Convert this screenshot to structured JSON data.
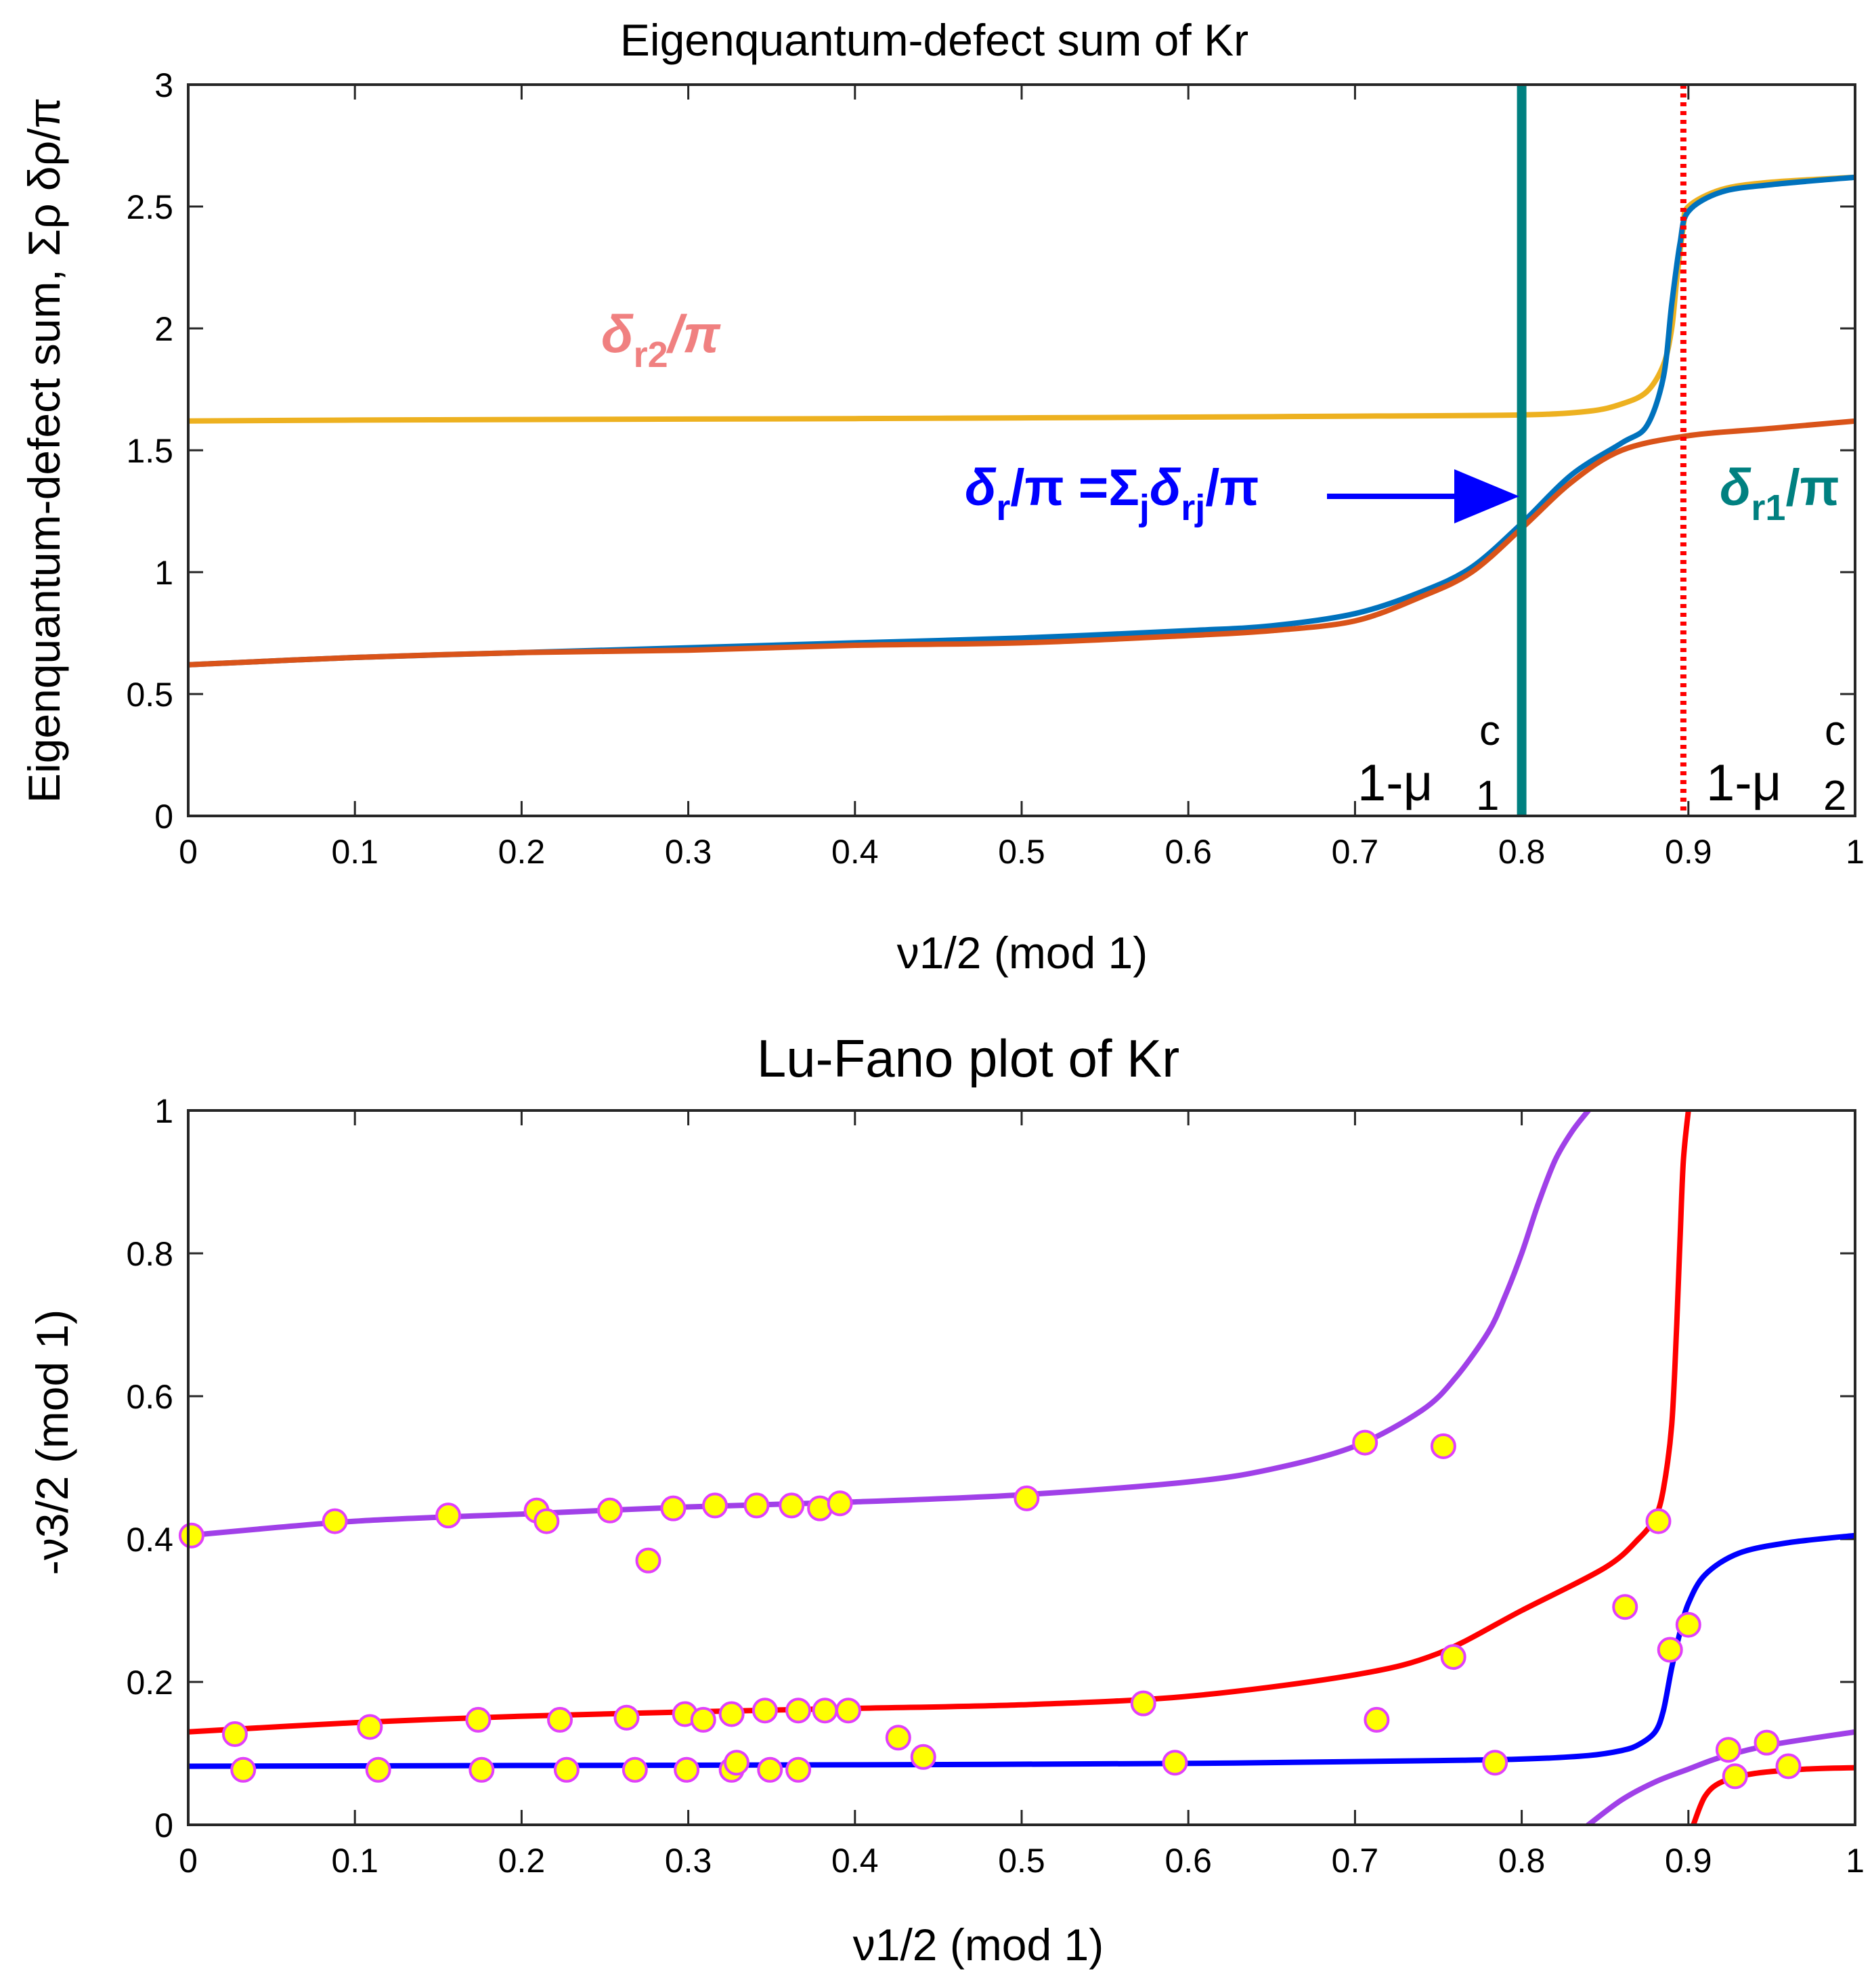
{
  "chart_data": [
    {
      "type": "line",
      "title": "Eigenquantum-defect sum of Kr",
      "xlabel": "ν1/2 (mod 1)",
      "ylabel": "Eigenquantum-defect sum, Σρ δρ/π",
      "xlim": [
        0,
        1
      ],
      "ylim": [
        0,
        3
      ],
      "xticks": [
        "0",
        "0.1",
        "0.2",
        "0.3",
        "0.4",
        "0.5",
        "0.6",
        "0.7",
        "0.8",
        "0.9",
        "1"
      ],
      "yticks": [
        "0",
        "0.5",
        "1",
        "1.5",
        "2",
        "2.5",
        "3"
      ],
      "series": [
        {
          "name": "δr2/π",
          "color": "#EDB120",
          "x": [
            0,
            0.1,
            0.2,
            0.3,
            0.4,
            0.5,
            0.6,
            0.7,
            0.8,
            0.84,
            0.86,
            0.875,
            0.885,
            0.89,
            0.893,
            0.897,
            0.9,
            0.92,
            0.95,
            1
          ],
          "y": [
            1.62,
            1.624,
            1.626,
            1.628,
            1.63,
            1.633,
            1.636,
            1.64,
            1.645,
            1.66,
            1.69,
            1.74,
            1.85,
            2.0,
            2.2,
            2.42,
            2.5,
            2.57,
            2.6,
            2.62
          ]
        },
        {
          "name": "δr/π = Σj δrj/π",
          "color": "#0072BD",
          "x": [
            0,
            0.1,
            0.2,
            0.3,
            0.4,
            0.5,
            0.6,
            0.65,
            0.7,
            0.74,
            0.77,
            0.8,
            0.83,
            0.86,
            0.875,
            0.885,
            0.89,
            0.895,
            0.9,
            0.92,
            0.95,
            1
          ],
          "y": [
            0.62,
            0.65,
            0.67,
            0.69,
            0.71,
            0.73,
            0.76,
            0.78,
            0.83,
            0.92,
            1.02,
            1.2,
            1.4,
            1.53,
            1.6,
            1.8,
            2.1,
            2.35,
            2.48,
            2.56,
            2.59,
            2.62
          ]
        },
        {
          "name": "δr1/π",
          "color": "#D95319",
          "x": [
            0,
            0.1,
            0.2,
            0.3,
            0.4,
            0.5,
            0.6,
            0.65,
            0.7,
            0.74,
            0.77,
            0.8,
            0.83,
            0.86,
            0.9,
            0.95,
            1
          ],
          "y": [
            0.62,
            0.65,
            0.67,
            0.68,
            0.7,
            0.71,
            0.74,
            0.76,
            0.8,
            0.9,
            1.0,
            1.18,
            1.37,
            1.5,
            1.56,
            1.59,
            1.62
          ]
        }
      ],
      "vlines": [
        {
          "x": 0.8,
          "label_main": "1-μ",
          "label_sup": "c",
          "label_sub": "1",
          "color": "#008080",
          "style": "solid"
        },
        {
          "x": 0.897,
          "label_main": "1-μ",
          "label_sup": "c",
          "label_sub": "2",
          "color": "#FF0000",
          "style": "dotted"
        }
      ],
      "annotations": {
        "r2": {
          "main": "δ",
          "sub": "r2",
          "tail": "/π",
          "color": "#F08080"
        },
        "r": {
          "main": "δ",
          "sub": "r",
          "mid": "/π =Σ",
          "sub2": "j",
          "mid2": "δ",
          "sub3": "rj",
          "tail": "/π",
          "color": "#0000FF"
        },
        "r1": {
          "main": "δ",
          "sub": "r1",
          "tail": "/π",
          "color": "#008080"
        }
      }
    },
    {
      "type": "scatter",
      "title": "Lu-Fano plot of Kr",
      "xlabel": "ν1/2 (mod 1)",
      "ylabel": "-ν3/2 (mod 1)",
      "xlim": [
        0,
        1
      ],
      "ylim": [
        0,
        1
      ],
      "xticks": [
        "0",
        "0.1",
        "0.2",
        "0.3",
        "0.4",
        "0.5",
        "0.6",
        "0.7",
        "0.8",
        "0.9",
        "1"
      ],
      "yticks": [
        "0",
        "0.2",
        "0.4",
        "0.6",
        "0.8",
        "1"
      ],
      "series": [
        {
          "name": "purple branch",
          "color": "#A040E8",
          "x": [
            0,
            0.1,
            0.2,
            0.3,
            0.4,
            0.5,
            0.6,
            0.65,
            0.7,
            0.74,
            0.76,
            0.78,
            0.79,
            0.8,
            0.81,
            0.82,
            0.83,
            0.84
          ],
          "y": [
            0.405,
            0.425,
            0.435,
            0.445,
            0.452,
            0.462,
            0.48,
            0.498,
            0.53,
            0.58,
            0.625,
            0.69,
            0.74,
            0.8,
            0.87,
            0.93,
            0.97,
            1.0
          ]
        },
        {
          "name": "purple lower branch",
          "color": "#A040E8",
          "x": [
            0.84,
            0.86,
            0.88,
            0.9,
            0.92,
            0.95,
            1
          ],
          "y": [
            0.0,
            0.035,
            0.06,
            0.078,
            0.095,
            0.112,
            0.13
          ]
        },
        {
          "name": "red branch",
          "color": "#FF0000",
          "x": [
            0,
            0.1,
            0.2,
            0.3,
            0.4,
            0.5,
            0.6,
            0.7,
            0.75,
            0.8,
            0.85,
            0.87,
            0.88,
            0.885,
            0.89,
            0.893,
            0.895,
            0.897,
            0.9
          ],
          "y": [
            0.13,
            0.143,
            0.152,
            0.158,
            0.163,
            0.168,
            0.18,
            0.21,
            0.24,
            0.3,
            0.36,
            0.4,
            0.43,
            0.47,
            0.56,
            0.7,
            0.82,
            0.93,
            1.0
          ]
        },
        {
          "name": "red lower branch",
          "color": "#FF0000",
          "x": [
            0.903,
            0.91,
            0.92,
            0.94,
            0.97,
            1
          ],
          "y": [
            0.0,
            0.04,
            0.06,
            0.072,
            0.078,
            0.08
          ]
        },
        {
          "name": "blue branch",
          "color": "#0000FF",
          "x": [
            0,
            0.2,
            0.4,
            0.6,
            0.75,
            0.8,
            0.84,
            0.86,
            0.87,
            0.88,
            0.885,
            0.89,
            0.895,
            0.9,
            0.91,
            0.93,
            0.96,
            1
          ],
          "y": [
            0.082,
            0.083,
            0.084,
            0.086,
            0.09,
            0.092,
            0.097,
            0.104,
            0.112,
            0.13,
            0.16,
            0.22,
            0.27,
            0.31,
            0.35,
            0.38,
            0.395,
            0.405
          ]
        }
      ],
      "points": {
        "x": [
          0.002,
          0.088,
          0.156,
          0.209,
          0.215,
          0.253,
          0.276,
          0.291,
          0.316,
          0.341,
          0.362,
          0.379,
          0.391,
          0.503,
          0.706,
          0.753,
          0.028,
          0.109,
          0.174,
          0.223,
          0.263,
          0.298,
          0.309,
          0.326,
          0.346,
          0.366,
          0.382,
          0.396,
          0.426,
          0.441,
          0.573,
          0.713,
          0.759,
          0.882,
          0.862,
          0.889,
          0.9,
          0.033,
          0.114,
          0.176,
          0.227,
          0.268,
          0.299,
          0.326,
          0.329,
          0.349,
          0.366,
          0.592,
          0.784,
          0.924,
          0.947,
          0.928,
          0.96
        ],
        "y": [
          0.405,
          0.425,
          0.433,
          0.44,
          0.425,
          0.44,
          0.37,
          0.443,
          0.447,
          0.447,
          0.447,
          0.443,
          0.45,
          0.457,
          0.535,
          0.53,
          0.127,
          0.137,
          0.147,
          0.147,
          0.15,
          0.155,
          0.147,
          0.155,
          0.16,
          0.16,
          0.16,
          0.16,
          0.122,
          0.095,
          0.17,
          0.147,
          0.235,
          0.425,
          0.305,
          0.245,
          0.28,
          0.077,
          0.077,
          0.077,
          0.077,
          0.077,
          0.077,
          0.077,
          0.087,
          0.077,
          0.077,
          0.087,
          0.087,
          0.105,
          0.115,
          0.068,
          0.082
        ],
        "fill": "#FFFF00",
        "edge": "#E040FB"
      }
    }
  ]
}
